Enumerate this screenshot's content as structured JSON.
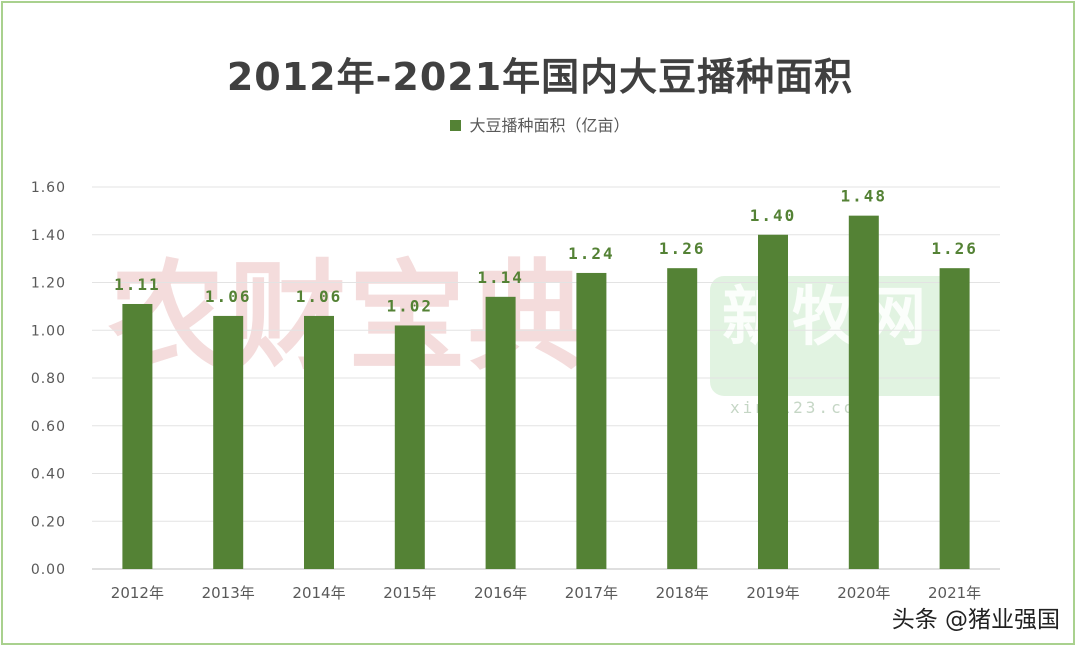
{
  "chart_data": {
    "type": "bar",
    "title": "2012年-2021年国内大豆播种面积",
    "legend_position": "top",
    "grid": true,
    "categories": [
      "2012年",
      "2013年",
      "2014年",
      "2015年",
      "2016年",
      "2017年",
      "2018年",
      "2019年",
      "2020年",
      "2021年"
    ],
    "series": [
      {
        "name": "大豆播种面积（亿亩）",
        "color": "#548235",
        "values": [
          1.11,
          1.06,
          1.06,
          1.02,
          1.14,
          1.24,
          1.26,
          1.4,
          1.48,
          1.26
        ],
        "labels": [
          "1.11",
          "1.06",
          "1.06",
          "1.02",
          "1.14",
          "1.24",
          "1.26",
          "1.40",
          "1.48",
          "1.26"
        ]
      }
    ],
    "ylim": [
      0,
      1.6
    ],
    "yticks": [
      "0.00",
      "0.20",
      "0.40",
      "0.60",
      "0.80",
      "1.00",
      "1.20",
      "1.40",
      "1.60"
    ],
    "yticks_values": [
      0,
      0.2,
      0.4,
      0.6,
      0.8,
      1.0,
      1.2,
      1.4,
      1.6
    ]
  },
  "watermarks": {
    "left": "农财宝典",
    "right": "新牧网",
    "url": "xinm123.com"
  },
  "footer": "头条 @猪业强国"
}
